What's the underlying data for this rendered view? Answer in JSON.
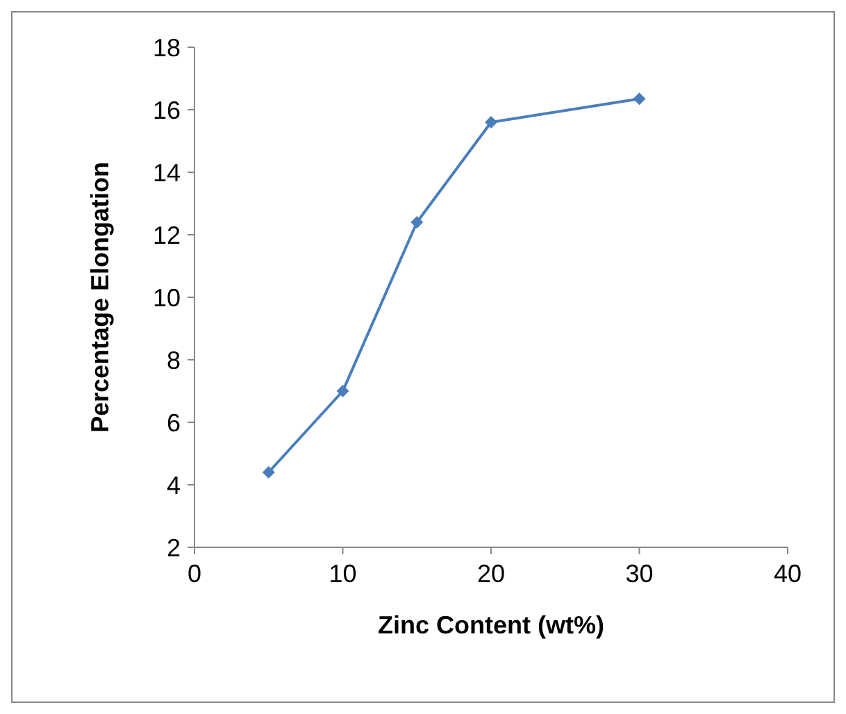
{
  "chart_data": {
    "type": "line",
    "xlabel": "Zinc Content (wt%)",
    "ylabel": "Percentage Elongation",
    "x": [
      5,
      10,
      15,
      20,
      30
    ],
    "series": [
      {
        "color": "#4a7ebb",
        "values": [
          4.4,
          7.0,
          12.4,
          15.6,
          16.35
        ]
      }
    ],
    "xlim": [
      0,
      40
    ],
    "xticks": [
      0,
      10,
      20,
      30,
      40
    ],
    "ylim": [
      2,
      18
    ],
    "yticks": [
      2,
      4,
      6,
      8,
      10,
      12,
      14,
      16,
      18
    ],
    "grid": false,
    "marker": "diamond",
    "line_style": "solid"
  }
}
